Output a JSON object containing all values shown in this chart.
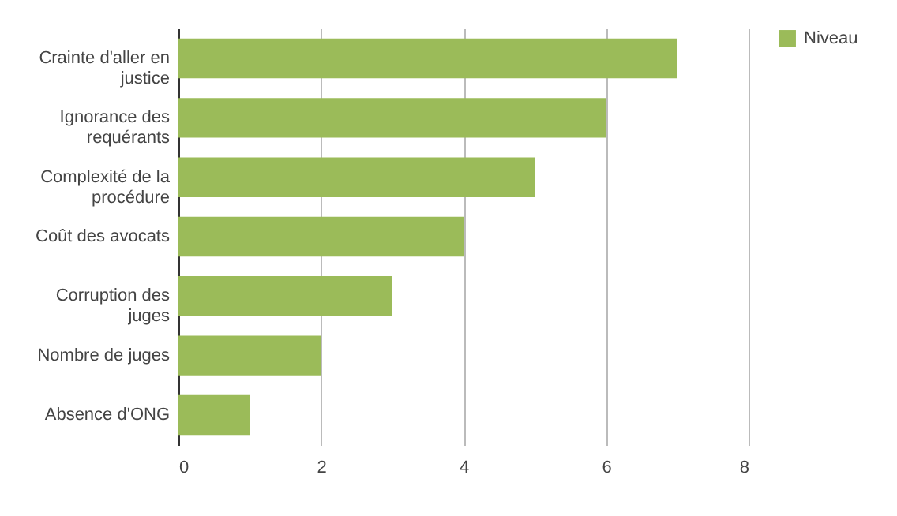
{
  "chart_data": {
    "type": "bar",
    "orientation": "horizontal",
    "categories": [
      "Crainte d'aller en justice",
      "Ignorance des requérants",
      "Complexité de la procédure",
      "Coût des avocats",
      "Corruption des juges",
      "Nombre de juges",
      "Absence d'ONG"
    ],
    "series": [
      {
        "name": "Niveau",
        "color": "#9bbb59",
        "values": [
          7,
          6,
          5,
          4,
          3,
          2,
          1
        ]
      }
    ],
    "xlim": [
      0,
      8
    ],
    "xticks": [
      0,
      2,
      4,
      6,
      8
    ],
    "grid": "x",
    "legend": "top right"
  }
}
